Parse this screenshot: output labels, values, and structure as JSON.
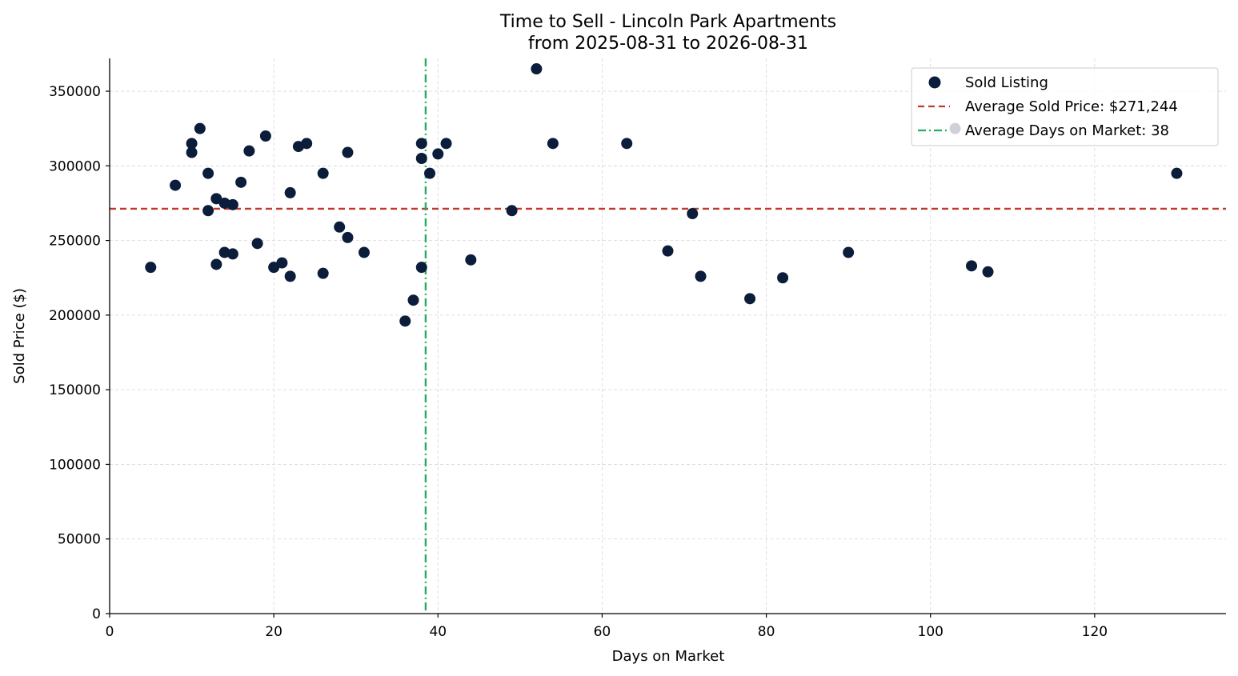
{
  "chart_data": {
    "type": "scatter",
    "title": "Time to Sell - Lincoln Park Apartments",
    "subtitle": "from 2025-08-31 to 2026-08-31",
    "xlabel": "Days on Market",
    "ylabel": "Sold Price ($)",
    "xlim": [
      0,
      136
    ],
    "ylim": [
      0,
      372000
    ],
    "xticks": [
      0,
      20,
      40,
      60,
      80,
      100,
      120
    ],
    "yticks": [
      0,
      50000,
      100000,
      150000,
      200000,
      250000,
      300000,
      350000
    ],
    "grid": true,
    "legend_position": "top-right",
    "colors": {
      "points": "#0b1d3a",
      "avg_price": "#c0392b",
      "avg_days": "#27ae60"
    },
    "series": [
      {
        "name": "Sold Listing",
        "points": [
          {
            "x": 5,
            "y": 232000
          },
          {
            "x": 8,
            "y": 287000
          },
          {
            "x": 10,
            "y": 315000
          },
          {
            "x": 10,
            "y": 309000
          },
          {
            "x": 11,
            "y": 325000
          },
          {
            "x": 12,
            "y": 295000
          },
          {
            "x": 12,
            "y": 270000
          },
          {
            "x": 13,
            "y": 278000
          },
          {
            "x": 13,
            "y": 234000
          },
          {
            "x": 14,
            "y": 275000
          },
          {
            "x": 14,
            "y": 242000
          },
          {
            "x": 15,
            "y": 274000
          },
          {
            "x": 15,
            "y": 241000
          },
          {
            "x": 16,
            "y": 289000
          },
          {
            "x": 17,
            "y": 310000
          },
          {
            "x": 18,
            "y": 248000
          },
          {
            "x": 19,
            "y": 320000
          },
          {
            "x": 20,
            "y": 232000
          },
          {
            "x": 21,
            "y": 235000
          },
          {
            "x": 22,
            "y": 282000
          },
          {
            "x": 22,
            "y": 226000
          },
          {
            "x": 23,
            "y": 313000
          },
          {
            "x": 24,
            "y": 315000
          },
          {
            "x": 26,
            "y": 295000
          },
          {
            "x": 26,
            "y": 228000
          },
          {
            "x": 28,
            "y": 259000
          },
          {
            "x": 29,
            "y": 309000
          },
          {
            "x": 29,
            "y": 252000
          },
          {
            "x": 31,
            "y": 242000
          },
          {
            "x": 36,
            "y": 196000
          },
          {
            "x": 37,
            "y": 210000
          },
          {
            "x": 38,
            "y": 315000
          },
          {
            "x": 38,
            "y": 305000
          },
          {
            "x": 38,
            "y": 232000
          },
          {
            "x": 39,
            "y": 295000
          },
          {
            "x": 40,
            "y": 308000
          },
          {
            "x": 41,
            "y": 315000
          },
          {
            "x": 44,
            "y": 237000
          },
          {
            "x": 49,
            "y": 270000
          },
          {
            "x": 52,
            "y": 365000
          },
          {
            "x": 54,
            "y": 315000
          },
          {
            "x": 63,
            "y": 315000
          },
          {
            "x": 68,
            "y": 243000
          },
          {
            "x": 71,
            "y": 268000
          },
          {
            "x": 72,
            "y": 226000
          },
          {
            "x": 78,
            "y": 211000
          },
          {
            "x": 82,
            "y": 225000
          },
          {
            "x": 90,
            "y": 242000
          },
          {
            "x": 103,
            "y": 325000
          },
          {
            "x": 105,
            "y": 233000
          },
          {
            "x": 107,
            "y": 229000
          },
          {
            "x": 130,
            "y": 295000
          }
        ]
      }
    ],
    "reference_lines": [
      {
        "name": "Average Sold Price: $271,244",
        "orientation": "horizontal",
        "value": 271244,
        "style": "dashed"
      },
      {
        "name": "Average Days on Market: 38",
        "orientation": "vertical",
        "value": 38.5,
        "style": "dashdot"
      }
    ],
    "legend": [
      {
        "label": "Sold Listing",
        "kind": "marker"
      },
      {
        "label": "Average Sold Price: $271,244",
        "kind": "dashed"
      },
      {
        "label": "Average Days on Market: 38",
        "kind": "dashdot"
      }
    ]
  }
}
